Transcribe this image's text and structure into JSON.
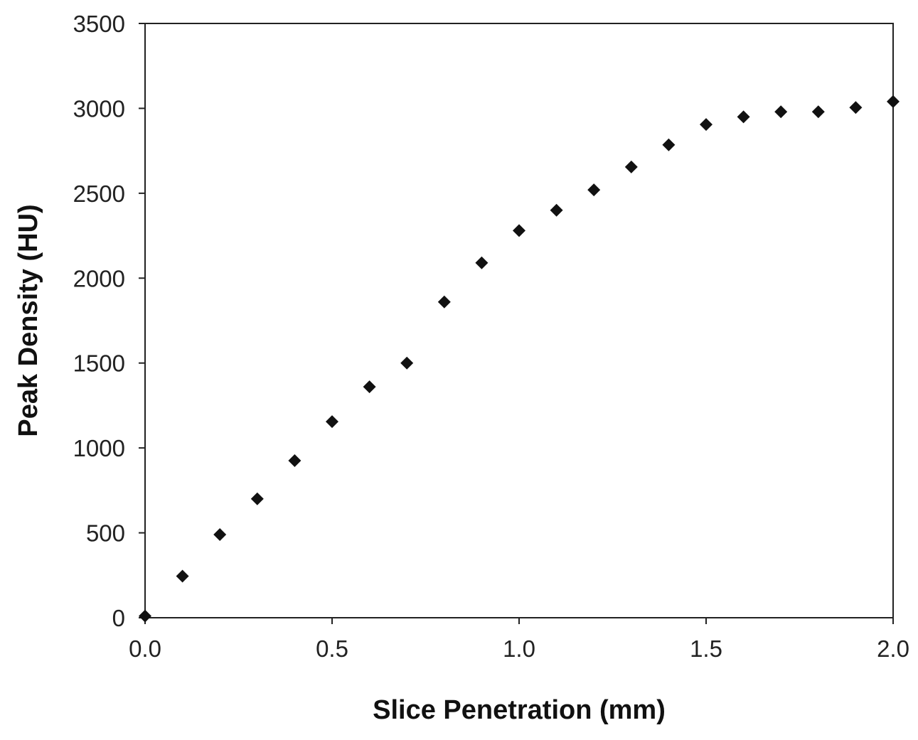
{
  "chart_data": {
    "type": "scatter",
    "title": "",
    "xlabel": "Slice Penetration (mm)",
    "ylabel": "Peak Density (HU)",
    "xlim": [
      0.0,
      2.0
    ],
    "ylim": [
      0,
      3500
    ],
    "x_ticks": [
      0.0,
      0.5,
      1.0,
      1.5,
      2.0
    ],
    "x_tick_labels": [
      "0.0",
      "0.5",
      "1.0",
      "1.5",
      "2.0"
    ],
    "y_ticks": [
      0,
      500,
      1000,
      1500,
      2000,
      2500,
      3000,
      3500
    ],
    "y_tick_labels": [
      "0",
      "500",
      "1000",
      "1500",
      "2000",
      "2500",
      "3000",
      "3500"
    ],
    "grid": false,
    "legend": "none",
    "marker": "diamond",
    "marker_color": "#111111",
    "series": [
      {
        "x": [
          0.0,
          0.1,
          0.2,
          0.3,
          0.4,
          0.5,
          0.6,
          0.7,
          0.8,
          0.9,
          1.0,
          1.1,
          1.2,
          1.3,
          1.4,
          1.5,
          1.6,
          1.7,
          1.8,
          1.9,
          2.0
        ],
        "y": [
          10,
          245,
          490,
          700,
          925,
          1155,
          1360,
          1500,
          1860,
          2090,
          2280,
          2400,
          2520,
          2655,
          2785,
          2905,
          2950,
          2980,
          2980,
          3005,
          3040
        ]
      }
    ]
  }
}
